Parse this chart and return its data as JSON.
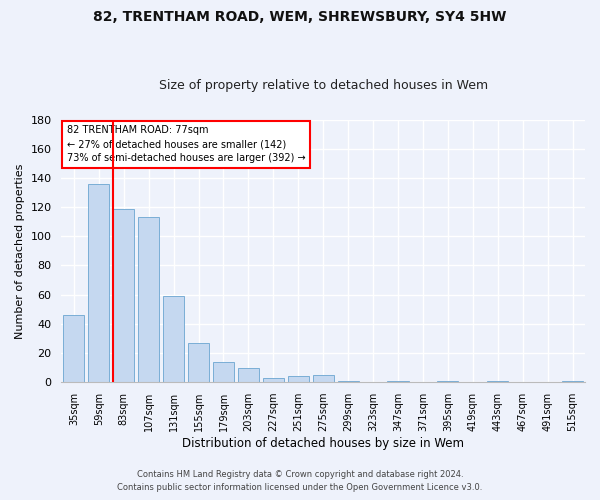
{
  "title1": "82, TRENTHAM ROAD, WEM, SHREWSBURY, SY4 5HW",
  "title2": "Size of property relative to detached houses in Wem",
  "xlabel": "Distribution of detached houses by size in Wem",
  "ylabel": "Number of detached properties",
  "categories": [
    "35sqm",
    "59sqm",
    "83sqm",
    "107sqm",
    "131sqm",
    "155sqm",
    "179sqm",
    "203sqm",
    "227sqm",
    "251sqm",
    "275sqm",
    "299sqm",
    "323sqm",
    "347sqm",
    "371sqm",
    "395sqm",
    "419sqm",
    "443sqm",
    "467sqm",
    "491sqm",
    "515sqm"
  ],
  "values": [
    46,
    136,
    119,
    113,
    59,
    27,
    14,
    10,
    3,
    4,
    5,
    1,
    0,
    1,
    0,
    1,
    0,
    1,
    0,
    0,
    1
  ],
  "bar_color": "#c5d8f0",
  "bar_edge_color": "#7aaed6",
  "red_line_index": 2,
  "annotation_line1": "82 TRENTHAM ROAD: 77sqm",
  "annotation_line2": "← 27% of detached houses are smaller (142)",
  "annotation_line3": "73% of semi-detached houses are larger (392) →",
  "annotation_box_color": "white",
  "annotation_border_color": "red",
  "red_line_color": "red",
  "ylim": [
    0,
    180
  ],
  "yticks": [
    0,
    20,
    40,
    60,
    80,
    100,
    120,
    140,
    160,
    180
  ],
  "footer1": "Contains HM Land Registry data © Crown copyright and database right 2024.",
  "footer2": "Contains public sector information licensed under the Open Government Licence v3.0.",
  "background_color": "#eef2fb",
  "plot_bg_color": "#eef2fb",
  "grid_color": "#ffffff"
}
